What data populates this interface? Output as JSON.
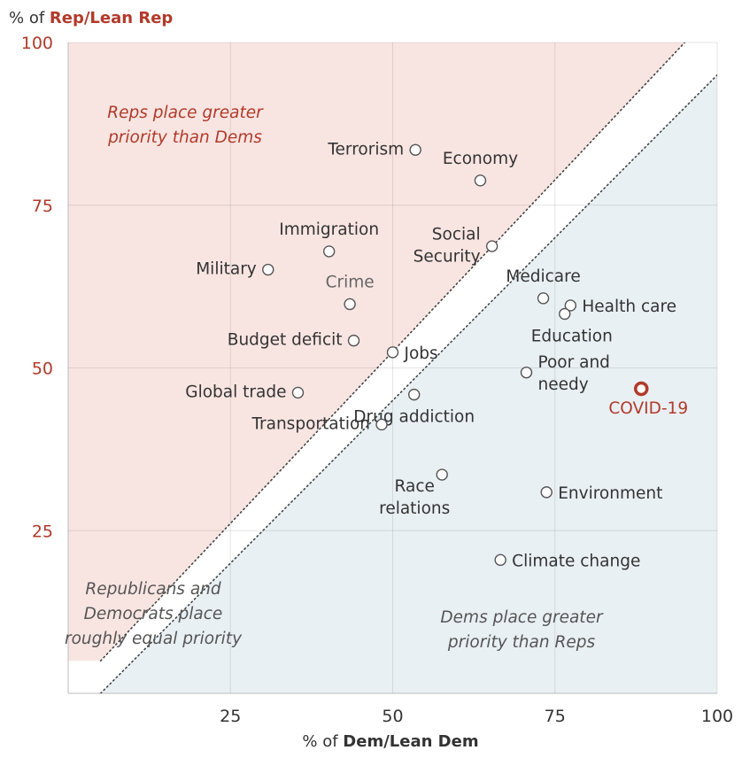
{
  "chart_data": {
    "type": "scatter",
    "title": "",
    "xlabel": {
      "prefix": "% of ",
      "bold": "Dem/Lean Dem"
    },
    "ylabel": {
      "prefix": "% of ",
      "bold": "Rep/Lean Rep"
    },
    "xlim": [
      0,
      100
    ],
    "ylim": [
      0,
      100
    ],
    "x_ticks": [
      25,
      50,
      75,
      100
    ],
    "y_ticks": [
      25,
      50,
      75,
      100
    ],
    "grid": true,
    "colors": {
      "rep_region": "#f8e5e1",
      "dem_region": "#e9f0f4",
      "highlight": "#b23a2a",
      "point_stroke": "#555555",
      "text": "#333333"
    },
    "reference_lines": [
      {
        "name": "upper-diagonal",
        "from": [
          5,
          5
        ],
        "to": [
          95,
          100
        ]
      },
      {
        "name": "lower-diagonal",
        "from": [
          5,
          0
        ],
        "to": [
          100,
          95
        ]
      }
    ],
    "regions": {
      "reps": [
        "Reps place greater",
        "priority than Dems"
      ],
      "equal": [
        "Republicans and",
        "Democrats place",
        "roughly equal priority"
      ],
      "dems": [
        "Dems place greater",
        "priority than Reps"
      ]
    },
    "points": [
      {
        "label": [
          "Terrorism"
        ],
        "x": 53.5,
        "y": 83.5,
        "pos": "left"
      },
      {
        "label": [
          "Economy"
        ],
        "x": 63.5,
        "y": 78.8,
        "pos": "above"
      },
      {
        "label": [
          "Immigration"
        ],
        "x": 40.2,
        "y": 67.9,
        "pos": "above"
      },
      {
        "label": [
          "Social",
          "Security"
        ],
        "x": 65.3,
        "y": 68.7,
        "pos": "left"
      },
      {
        "label": [
          "Military"
        ],
        "x": 30.8,
        "y": 65.1,
        "pos": "left"
      },
      {
        "label": [
          "Crime"
        ],
        "x": 43.4,
        "y": 59.8,
        "pos": "above",
        "style": "dim"
      },
      {
        "label": [
          "Medicare"
        ],
        "x": 73.2,
        "y": 60.7,
        "pos": "above"
      },
      {
        "label": [
          "Health care"
        ],
        "x": 77.4,
        "y": 59.6,
        "pos": "right"
      },
      {
        "label": [
          "Education"
        ],
        "x": 76.5,
        "y": 58.3,
        "pos": "below"
      },
      {
        "label": [
          "Budget deficit"
        ],
        "x": 44.0,
        "y": 54.2,
        "pos": "left"
      },
      {
        "label": [
          "Jobs"
        ],
        "x": 50.0,
        "y": 52.4,
        "pos": "right"
      },
      {
        "label": [
          "Poor and",
          "needy"
        ],
        "x": 70.6,
        "y": 49.3,
        "pos": "right"
      },
      {
        "label": [
          "Global trade"
        ],
        "x": 35.4,
        "y": 46.2,
        "pos": "left"
      },
      {
        "label": [
          "Drug addiction"
        ],
        "x": 53.3,
        "y": 45.9,
        "pos": "below"
      },
      {
        "label": [
          "COVID-19"
        ],
        "x": 88.3,
        "y": 46.8,
        "pos": "below",
        "style": "hl"
      },
      {
        "label": [
          "Transportation"
        ],
        "x": 48.3,
        "y": 41.3,
        "pos": "left"
      },
      {
        "label": [
          "Race",
          "relations"
        ],
        "x": 57.6,
        "y": 33.6,
        "pos": "left-below"
      },
      {
        "label": [
          "Environment"
        ],
        "x": 73.7,
        "y": 30.9,
        "pos": "right"
      },
      {
        "label": [
          "Climate change"
        ],
        "x": 66.6,
        "y": 20.5,
        "pos": "right"
      }
    ]
  }
}
